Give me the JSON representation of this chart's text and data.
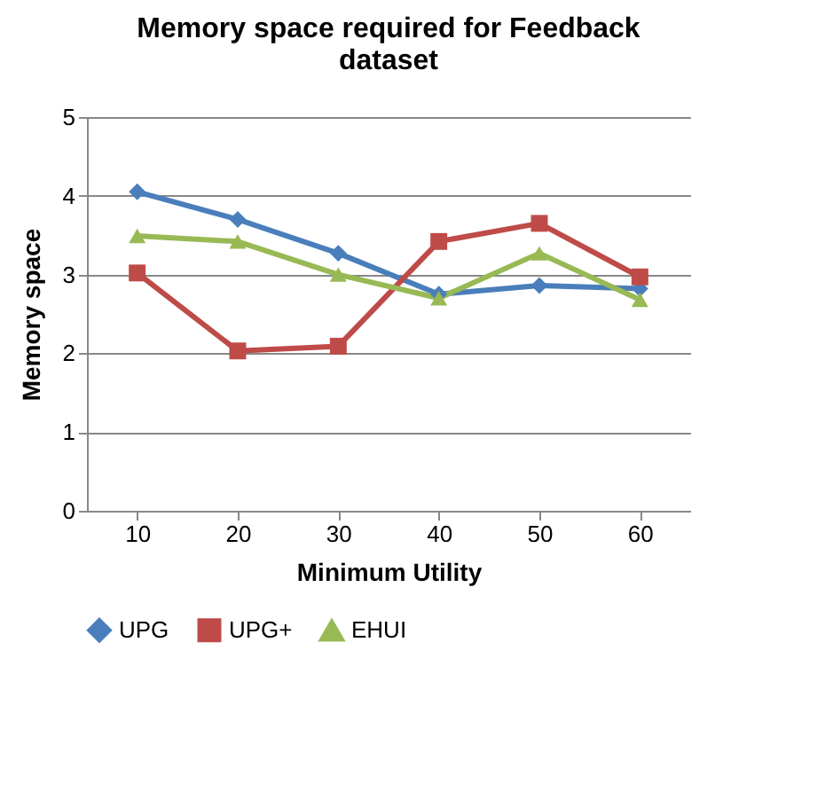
{
  "chart_data": {
    "type": "line",
    "title": "Memory space required for Feedback dataset",
    "xlabel": "Minimum Utility",
    "ylabel": "Memory space",
    "categories": [
      "10",
      "20",
      "30",
      "40",
      "50",
      "60"
    ],
    "series": [
      {
        "name": "UPG",
        "color": "#4a7ebb",
        "marker": "diamond",
        "values": [
          4.05,
          3.7,
          3.27,
          2.75,
          2.86,
          2.82
        ]
      },
      {
        "name": "UPG+",
        "color": "#be4b48",
        "marker": "square",
        "values": [
          3.02,
          2.03,
          2.09,
          3.42,
          3.65,
          2.97
        ]
      },
      {
        "name": "EHUI",
        "color": "#98b954",
        "marker": "triangle",
        "values": [
          3.49,
          3.42,
          3.0,
          2.7,
          3.27,
          2.68
        ]
      }
    ],
    "ylim": [
      0,
      5
    ],
    "yticks": [
      0,
      1,
      2,
      3,
      4,
      5
    ],
    "grid": "y",
    "legend": "bottom",
    "line_style": "solid"
  }
}
